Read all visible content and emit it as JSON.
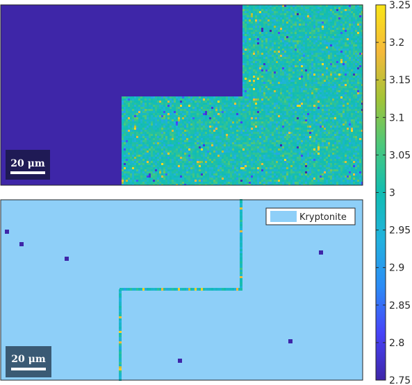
{
  "colormap": {
    "stops": [
      "#3e26a8",
      "#4743f8",
      "#2c8cf6",
      "#22b2de",
      "#11bdb2",
      "#4bc87c",
      "#a3c437",
      "#f5b93a",
      "#f9e517"
    ],
    "range": [
      2.75,
      3.25
    ],
    "ticks": [
      "3.25",
      "3.2",
      "3.15",
      "3.1",
      "3.05",
      "3",
      "2.95",
      "2.9",
      "2.85",
      "2.8",
      "2.75"
    ],
    "tick_values": [
      3.25,
      3.2,
      3.15,
      3.1,
      3.05,
      3.0,
      2.95,
      2.9,
      2.85,
      2.8,
      2.75
    ]
  },
  "scalebar_top": {
    "label": "20 μm"
  },
  "scalebar_bottom": {
    "label": "20 μm"
  },
  "legend": {
    "label": "Kryptonite",
    "color": "#8ecff8"
  },
  "chart_data": [
    {
      "type": "heatmap",
      "panel": "top",
      "description_values": {
        "background_value": 2.75,
        "typical_value": 3.0,
        "range": [
          2.75,
          3.25
        ]
      },
      "colorbar_ticks": [
        2.75,
        2.8,
        2.85,
        2.9,
        2.95,
        3.0,
        3.05,
        3.1,
        3.15,
        3.2,
        3.25
      ]
    },
    {
      "type": "heatmap",
      "panel": "bottom",
      "legend": [
        "Kryptonite"
      ],
      "phase_color": "#8ecff8",
      "boundary_value_range": [
        2.9,
        3.2
      ],
      "defect_value": 2.75
    }
  ]
}
